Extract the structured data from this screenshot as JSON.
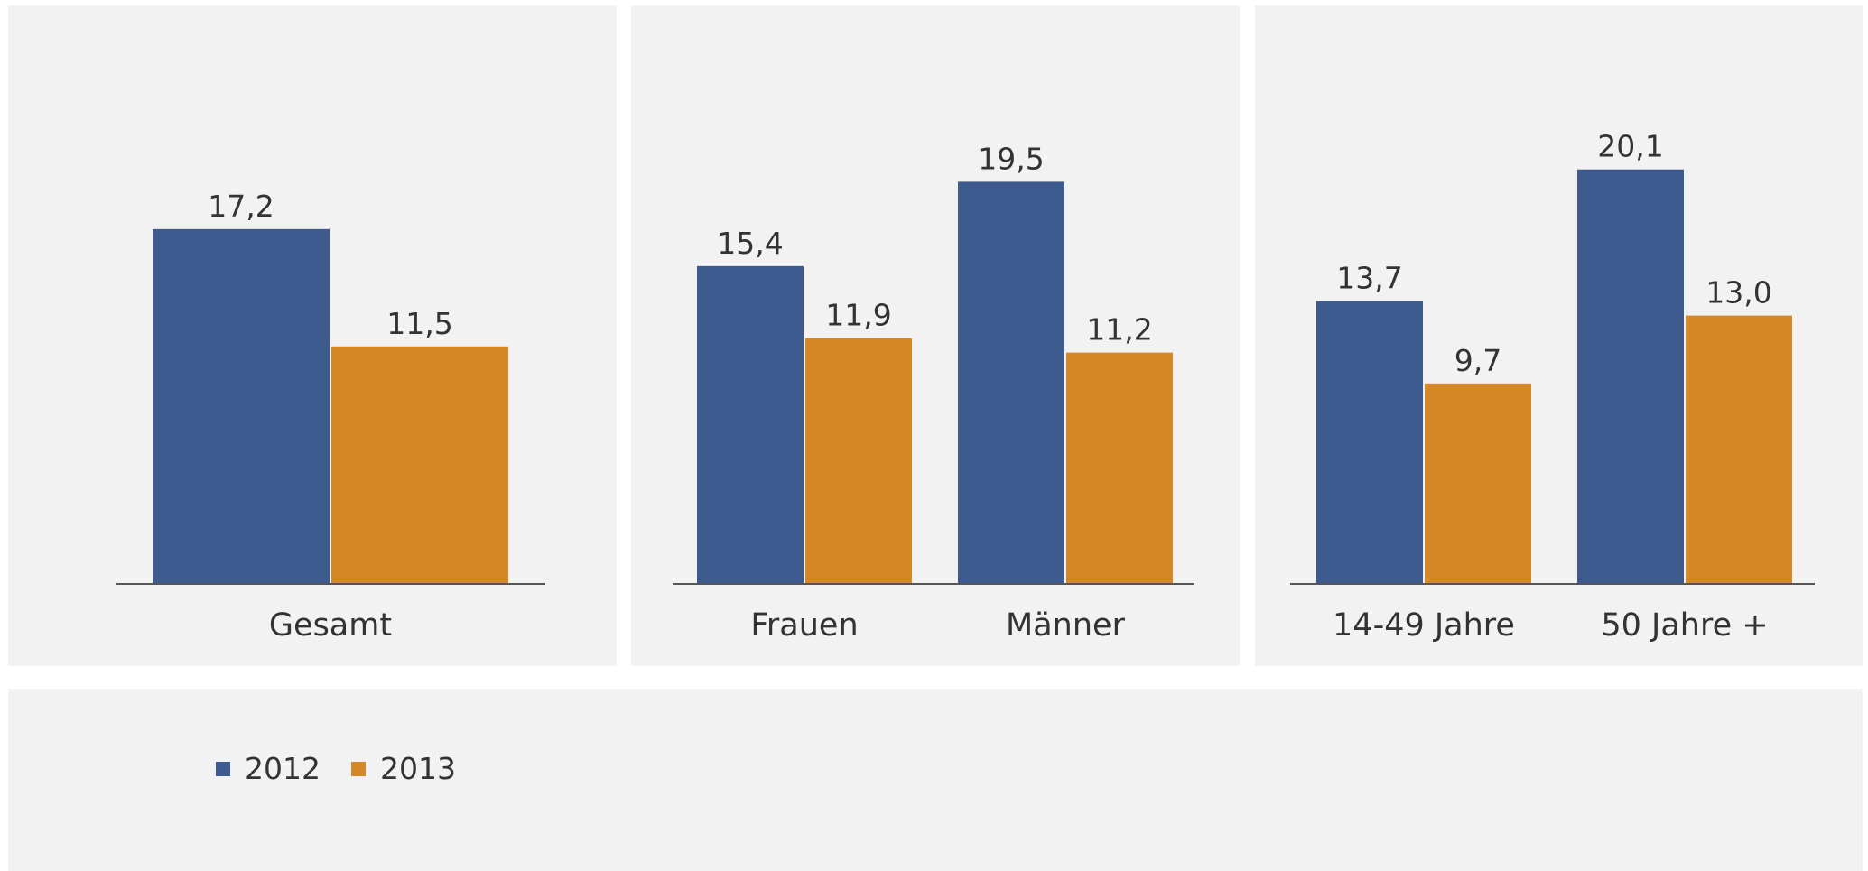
{
  "colors": {
    "s2012": "#3d5b8f",
    "s2013": "#d58827",
    "text": "#333333",
    "axis": "#555555",
    "panel_bg": "#f2f2f2"
  },
  "legend": {
    "items": [
      {
        "label": "2012",
        "color": "#3d5b8f"
      },
      {
        "label": "2013",
        "color": "#d58827"
      }
    ]
  },
  "chart_data": [
    {
      "type": "bar",
      "categories": [
        "Gesamt"
      ],
      "series": [
        {
          "name": "2012",
          "values": [
            17.2
          ],
          "labels": [
            "17,2"
          ]
        },
        {
          "name": "2013",
          "values": [
            11.5
          ],
          "labels": [
            "11,5"
          ]
        }
      ],
      "ylim": [
        0,
        24
      ],
      "grid": false,
      "legend": "bottom-left"
    },
    {
      "type": "bar",
      "categories": [
        "Frauen",
        "Männer"
      ],
      "series": [
        {
          "name": "2012",
          "values": [
            15.4,
            19.5
          ],
          "labels": [
            "15,4",
            "19,5"
          ]
        },
        {
          "name": "2013",
          "values": [
            11.9,
            11.2
          ],
          "labels": [
            "11,9",
            "11,2"
          ]
        }
      ],
      "ylim": [
        0,
        24
      ],
      "grid": false,
      "legend": "bottom-left"
    },
    {
      "type": "bar",
      "categories": [
        "14-49 Jahre",
        "50 Jahre +"
      ],
      "series": [
        {
          "name": "2012",
          "values": [
            13.7,
            20.1
          ],
          "labels": [
            "13,7",
            "20,1"
          ]
        },
        {
          "name": "2013",
          "values": [
            9.7,
            13.0
          ],
          "labels": [
            "9,7",
            "13,0"
          ]
        }
      ],
      "ylim": [
        0,
        24
      ],
      "grid": false,
      "legend": "bottom-left"
    }
  ]
}
